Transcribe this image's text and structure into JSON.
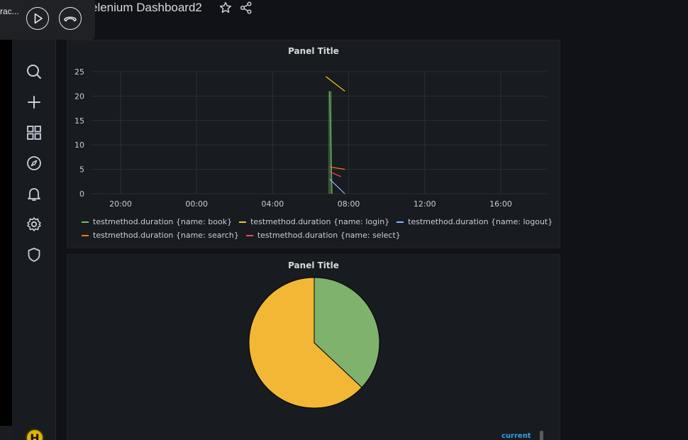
{
  "share_bar": {
    "text": "rac..."
  },
  "dashboard": {
    "title": "elenium Dashboard2"
  },
  "panels": [
    {
      "title": "Panel Title",
      "chart_data": {
        "type": "line",
        "title": "Panel Title",
        "x_ticks": [
          "20:00",
          "00:00",
          "04:00",
          "08:00",
          "12:00",
          "16:00"
        ],
        "y_ticks": [
          "0",
          "5",
          "10",
          "15",
          "20",
          "25"
        ],
        "ylim": [
          0,
          25
        ],
        "grid": true,
        "legend_placement": "bottom",
        "series": [
          {
            "name": "testmethod.duration {name: book}",
            "color": "#73bf69",
            "points": [
              [
                2.75,
                21
              ],
              [
                2.78,
                0
              ]
            ]
          },
          {
            "name": "testmethod.duration {name: login}",
            "color": "#f2cc0c",
            "points": [
              [
                2.7,
                24
              ],
              [
                2.95,
                21
              ]
            ]
          },
          {
            "name": "testmethod.duration {name: logout}",
            "color": "#8ab8ff",
            "points": [
              [
                2.75,
                3
              ],
              [
                2.95,
                0
              ]
            ]
          },
          {
            "name": "testmethod.duration {name: search}",
            "color": "#ff780a",
            "points": [
              [
                2.75,
                5.5
              ],
              [
                2.95,
                5
              ]
            ]
          },
          {
            "name": "testmethod.duration {name: select}",
            "color": "#f2495c",
            "points": [
              [
                2.75,
                4.5
              ],
              [
                2.9,
                3.5
              ]
            ]
          }
        ]
      }
    },
    {
      "title": "Panel Title",
      "legend_header": "current",
      "chart_data": {
        "type": "pie",
        "title": "Panel Title",
        "slices": [
          {
            "color": "#7eb26d",
            "value": 37
          },
          {
            "color": "#f2b735",
            "value": 63
          }
        ]
      }
    }
  ],
  "sidebar_icons": [
    "search-icon",
    "plus-icon",
    "dashboards-icon",
    "explore-icon",
    "alerting-icon",
    "settings-icon",
    "shield-icon"
  ],
  "avatar": {
    "letter": "H"
  }
}
